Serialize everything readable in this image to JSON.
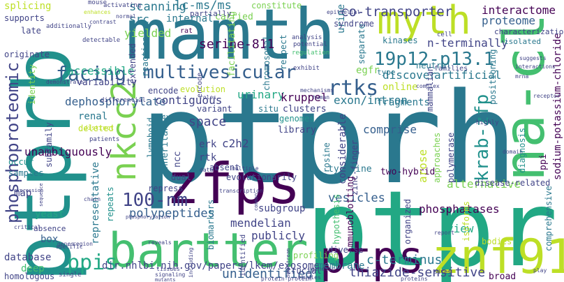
{
  "palette": {
    "yellow": "#bddf26",
    "lime": "#7ad151",
    "green": "#44bf70",
    "teal": "#22a884",
    "cyan": "#21918c",
    "blue": "#2a788e",
    "slate": "#355f8d",
    "indigo": "#414487",
    "purple": "#482475",
    "dark": "#440154"
  },
  "words": {
    "ptprh": "ptprh",
    "ptpra": "ptpra",
    "mamth": "mamth",
    "ptprb": "ptprb",
    "myth": "myth",
    "na_cl": "na-cl",
    "zfps": "zfps",
    "bartter": "bartter",
    "ptps": "ptps",
    "znf91": "znf91",
    "nkcc2": "nkcc2",
    "multivesicular": "multivesicular",
    "phosphoproteomic": "phosphoproteomic",
    "facing": "facing",
    "rtks": "rtks",
    "krab_zfp": "krab-zfp",
    "nm100": "100-nm",
    "chr19": "19p12-p13.1",
    "ppis": "ppis",
    "thiazide": "thiazide-sensitive",
    "unidentified": "unidentified",
    "c_terminus": "c-terminus",
    "phosphatases": "phosphatases",
    "serine": "serine-811",
    "lcms": "lc-ms/ms",
    "scanning": "scanning",
    "cotransporter": "co-transporter",
    "interactome": "interactome",
    "proteome": "proteome",
    "n_terminally": "n-terminally",
    "src": "src",
    "yielded": "yielded",
    "internal": "internal",
    "carried": "carried",
    "dephosphorylate": "dephosphorylate",
    "accessible": "accessible",
    "contiguous": "contiguous",
    "urinary": "urinary",
    "kruppel": "kruppel",
    "exon_intron": "exon/intron",
    "discover": "discover",
    "artificial": "artificial",
    "egfr": "egfr",
    "online": "online",
    "fragments": "fragments",
    "space": "space",
    "comprise": "comprise",
    "unambiguously": "unambiguously",
    "c2h2": "c2h2",
    "erk": "erk",
    "rtk": "rtk",
    "vesicles": "vesicles",
    "subgroup": "subgroup",
    "mendelian": "mendelian",
    "publicly": "publicly",
    "polypeptides": "polypeptides",
    "dir_url": "dir.nhlbi.nih.gov/papers/lkem/exosome",
    "membrane": "membrane",
    "immunoblotting": "immunoblotting",
    "representative": "representative",
    "database": "database",
    "deep": "deep",
    "alternative": "alternative",
    "view": "view",
    "disease_related": "disease-related",
    "sodium": "sodium-potassium-chloride",
    "splicing": "splicing",
    "supports": "supports",
    "late": "late",
    "originate": "originate",
    "variability": "variability",
    "identity": "identity",
    "facilitating": "facilitating",
    "urine": "urine",
    "constitute": "constitute",
    "syndrome": "syndrome",
    "characterization": "characterization",
    "isolated": "isolated",
    "extended": "extended",
    "reaction": "reaction",
    "chromosomal": "chromosomal",
    "respect": "respect",
    "separate": "separate",
    "neutral": "neutral",
    "kinases": "kinases",
    "type": "type",
    "families": "families",
    "encode": "encode",
    "evolution": "evolution",
    "variant": "variant",
    "situ": "situ",
    "clusters": "clusters",
    "genomes": "genomes",
    "library": "library",
    "inheritance": "inheritance",
    "considerable": "considerable",
    "tyrosine": "tyrosine",
    "zinc_finger": "zinc-finger",
    "two_hybrid": "two-hybrid",
    "arose": "arose",
    "approaches": "approaches",
    "polymerase": "polymerase",
    "ppi": "ppi",
    "diagnosis": "diagnosis",
    "positioning": "positioning",
    "mammalian": "mammalian",
    "ncc": "ncc",
    "lymphoid": "lymphoid",
    "absent": "absent",
    "evolutionarily": "evolutionarily",
    "dual": "dual",
    "repress": "repress",
    "subfamily": "subfamily",
    "renal": "renal",
    "deleted": "deleted",
    "occur": "occur",
    "samples": "samples",
    "map": "map",
    "yeast": "yeast",
    "box": "box",
    "repeats": "repeats",
    "biomarkers": "biomarkers",
    "diverse": "diverse",
    "hypothesis": "hypothesis",
    "organized": "organized",
    "profiling": "profiling",
    "bodies": "bodies",
    "isoforms": "isoforms",
    "comprehensive": "comprehensive",
    "homologous": "homologous",
    "crucial": "crucial",
    "broad": "broad",
    "proteins": "proteins",
    "mouse": "mouse",
    "activating": "activating",
    "enhances": "enhances",
    "normal": "normal",
    "additionally": "additionally",
    "contrast": "contrast",
    "rat": "rat",
    "partially": "partially",
    "detectable": "detectable",
    "demonstrate": "demonstrate",
    "differential": "differential",
    "distinct": "distinct",
    "patients": "patients",
    "epithelial": "epithelial",
    "analysis": "analysis",
    "potential": "potential",
    "regulation": "regulation",
    "suggests": "suggests",
    "exhibit": "exhibit",
    "mechanisms": "mechanisms",
    "human": "human",
    "cell": "cell",
    "complex": "complex",
    "receptor": "receptor",
    "mrna": "mrna",
    "highly": "highly",
    "domain": "domain",
    "roles": "roles",
    "data": "data",
    "multiple": "multiple",
    "transcription": "transcription",
    "expression": "expression",
    "chain": "chain",
    "absence": "absence",
    "genes": "genes",
    "region": "region",
    "specific": "specific",
    "reveals": "reveals",
    "signaling": "signaling",
    "tissues": "tissues",
    "including": "including",
    "phosphorylation": "phosphorylation",
    "mutants": "mutants",
    "studies": "studies",
    "genetic": "genetic",
    "identified": "identified",
    "sites": "sites",
    "report": "report",
    "single": "single",
    "protein_protein": "protein-protein",
    "play": "play",
    "interactions": "interactions",
    "downstream": "downstream",
    "sequence": "sequence",
    "common": "common",
    "critical": "critical"
  }
}
